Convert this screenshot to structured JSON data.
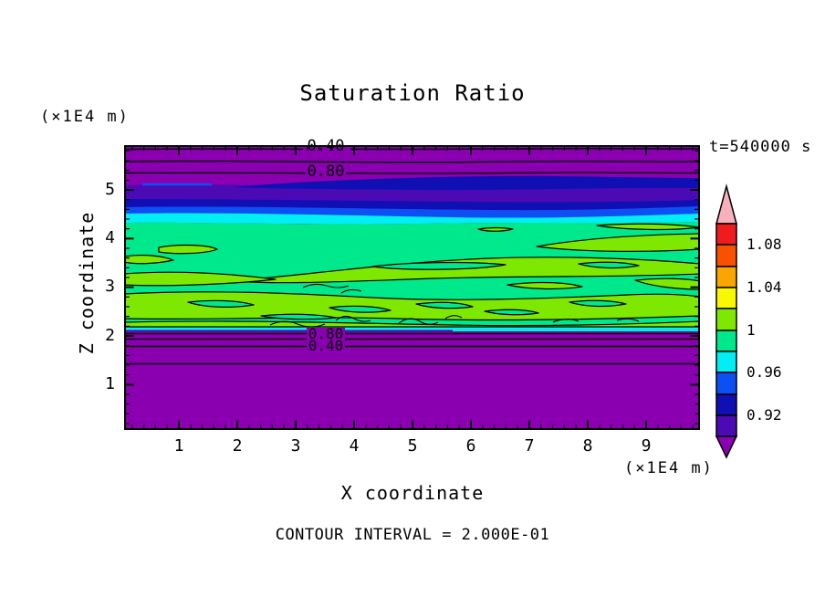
{
  "title": "Saturation Ratio",
  "time_label": "t=540000 s",
  "z_axis": {
    "label": "Z coordinate",
    "unit": "(×1E4 m)",
    "ticks": [
      "5",
      "4",
      "3",
      "2",
      "1"
    ]
  },
  "x_axis": {
    "label": "X coordinate",
    "unit": "(×1E4 m)",
    "ticks": [
      "1",
      "2",
      "3",
      "4",
      "5",
      "6",
      "7",
      "8",
      "9"
    ]
  },
  "contour_note": "CONTOUR INTERVAL = 2.000E-01",
  "contour_labels": {
    "top_040": "0.40",
    "top_080": "0.80",
    "bottom_080": "0.80",
    "bottom_040": "0.40"
  },
  "colorbar": {
    "tick_labels": [
      "1.08",
      "1.04",
      "1",
      "0.96",
      "0.92"
    ]
  },
  "palette": {
    "purple": "#8A00B0",
    "violet": "#4B0AB4",
    "navy": "#0F0FB4",
    "blue": "#0C50F4",
    "cyan": "#00EEF4",
    "green": "#00E88C",
    "chartreuse": "#7FE800",
    "yellow": "#F8F800",
    "orange": "#FAA600",
    "orangered": "#F85200",
    "red": "#EE1C1C",
    "pink": "#F8B0BC"
  },
  "chart_data": {
    "type": "heatmap",
    "subtype": "filled-contour",
    "title": "Saturation Ratio",
    "xlabel": "X coordinate",
    "ylabel": "Z coordinate",
    "x_unit": "×1E4 m",
    "z_unit": "×1E4 m",
    "time_annotation": "t=540000 s",
    "x_range": [
      0,
      10
    ],
    "z_range": [
      0,
      5.9
    ],
    "x_major_ticks": [
      1,
      2,
      3,
      4,
      5,
      6,
      7,
      8,
      9
    ],
    "z_major_ticks": [
      1,
      2,
      3,
      4,
      5
    ],
    "grid": false,
    "contour_interval": 0.2,
    "contour_note": "CONTOUR INTERVAL = 2.000E-01",
    "colorbar": {
      "position": "right",
      "range": [
        0.9,
        1.1
      ],
      "segment_step": 0.02,
      "tick_values": [
        1.08,
        1.04,
        1,
        0.96,
        0.92
      ],
      "segment_colors_top_to_bottom": [
        "#EE1C1C",
        "#F85200",
        "#FAA600",
        "#F8F800",
        "#7FE800",
        "#00E88C",
        "#00EEF4",
        "#0C50F4",
        "#0F0FB4",
        "#4B0AB4"
      ],
      "over_color": "#F8B0BC",
      "under_color": "#8A00B0"
    },
    "labeled_line_contours": [
      {
        "value": 0.4,
        "z_location": 5.85
      },
      {
        "value": 0.8,
        "z_location": 5.35
      },
      {
        "value": 0.8,
        "z_location": 2.05
      },
      {
        "value": 0.4,
        "z_location": 1.8
      }
    ],
    "unlabeled_line_contours": [
      {
        "value": 0.6,
        "z_location": 5.6
      },
      {
        "value": 0.6,
        "z_location": 1.95
      },
      {
        "value": 0.2,
        "z_location": 1.45
      }
    ],
    "horizontal_bands_top_to_bottom": [
      {
        "z_from": 5.9,
        "z_to": 5.2,
        "saturation": "< 0.9",
        "fill": "purple",
        "note": "line contours 0.40 / 0.60 / 0.80 increase downward"
      },
      {
        "z_from": 5.2,
        "z_to": 5.0,
        "saturation": "0.92-0.94",
        "fill": "navy",
        "note": "wavy band, pinches out toward left"
      },
      {
        "z_from": 5.0,
        "z_to": 4.75,
        "saturation": "0.90-0.92",
        "fill": "violet",
        "note": "thin blue streak embedded at left"
      },
      {
        "z_from": 4.75,
        "z_to": 4.55,
        "saturation": "0.92-0.94",
        "fill": "navy"
      },
      {
        "z_from": 4.55,
        "z_to": 4.4,
        "saturation": "0.94-0.96",
        "fill": "blue"
      },
      {
        "z_from": 4.4,
        "z_to": 4.25,
        "saturation": "0.96-0.98",
        "fill": "cyan"
      },
      {
        "z_from": 4.25,
        "z_to": 2.15,
        "saturation": "0.98-1.02",
        "fill": "green with chartreuse lens-shaped pockets (1.00-1.02) outlined by the 1.0 contour"
      },
      {
        "z_from": 2.15,
        "z_to": 2.05,
        "saturation": "0.96-0.98",
        "fill": "cyan sliver"
      },
      {
        "z_from": 2.05,
        "z_to": 0.05,
        "saturation": "< 0.9",
        "fill": "purple",
        "note": "line contours 0.80 / 0.60 / 0.40 / 0.20 decrease downward"
      }
    ]
  }
}
